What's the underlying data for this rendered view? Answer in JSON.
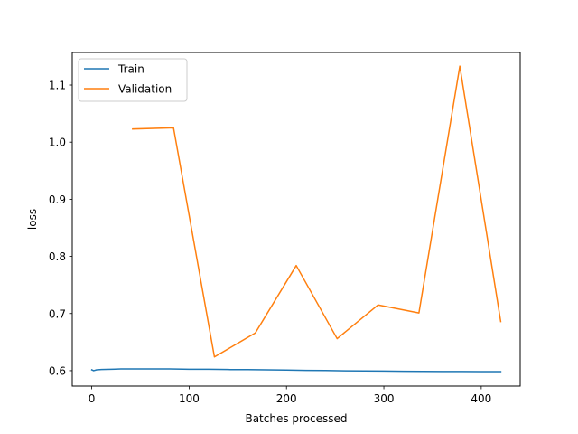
{
  "chart_data": {
    "type": "line",
    "xlabel": "Batches processed",
    "ylabel": "loss",
    "xlim": [
      -20,
      440
    ],
    "ylim": [
      0.573,
      1.157
    ],
    "xticks": [
      0,
      100,
      200,
      300,
      400
    ],
    "yticks": [
      0.6,
      0.7,
      0.8,
      0.9,
      1.0,
      1.1
    ],
    "ytick_labels": [
      "0.6",
      "0.7",
      "0.8",
      "0.9",
      "1.0",
      "1.1"
    ],
    "grid": false,
    "legend_position": "top-left",
    "series": [
      {
        "name": "Train",
        "color": "#1f77b4",
        "x": [
          0,
          2,
          5,
          10,
          20,
          30,
          40,
          50,
          60,
          80,
          100,
          120,
          140,
          160,
          180,
          200,
          220,
          240,
          260,
          280,
          300,
          320,
          340,
          360,
          380,
          400,
          420
        ],
        "y": [
          0.6015,
          0.6,
          0.6015,
          0.602,
          0.6025,
          0.603,
          0.603,
          0.603,
          0.603,
          0.603,
          0.6025,
          0.6025,
          0.602,
          0.6018,
          0.6015,
          0.601,
          0.6005,
          0.6003,
          0.5998,
          0.5995,
          0.5993,
          0.599,
          0.5988,
          0.5985,
          0.5985,
          0.5983,
          0.5983
        ]
      },
      {
        "name": "Validation",
        "color": "#ff7f0e",
        "x": [
          42,
          84,
          126,
          168,
          210,
          252,
          294,
          336,
          378,
          420
        ],
        "y": [
          1.023,
          1.025,
          0.624,
          0.666,
          0.784,
          0.656,
          0.715,
          0.701,
          1.133,
          0.686
        ]
      }
    ]
  }
}
